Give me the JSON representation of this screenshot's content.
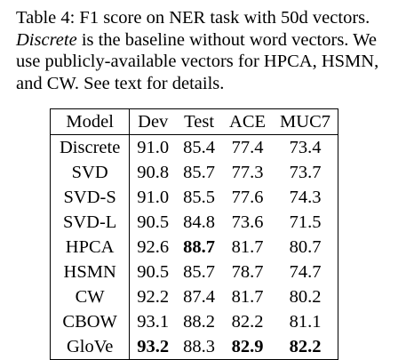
{
  "caption": {
    "line1": "Table 4: F1 score on NER task with 50d vectors.",
    "line2_italic": "Discrete",
    "line2_rest": " is the baseline without word vectors. We",
    "line3": "use publicly-available vectors for HPCA, HSMN,",
    "line4": "and CW. See text for details."
  },
  "table": {
    "headers": [
      "Model",
      "Dev",
      "Test",
      "ACE",
      "MUC7"
    ],
    "rows": [
      {
        "model": "Discrete",
        "values": [
          "91.0",
          "85.4",
          "77.4",
          "73.4"
        ],
        "bold": [
          false,
          false,
          false,
          false
        ]
      },
      {
        "model": "SVD",
        "values": [
          "90.8",
          "85.7",
          "77.3",
          "73.7"
        ],
        "bold": [
          false,
          false,
          false,
          false
        ]
      },
      {
        "model": "SVD-S",
        "values": [
          "91.0",
          "85.5",
          "77.6",
          "74.3"
        ],
        "bold": [
          false,
          false,
          false,
          false
        ]
      },
      {
        "model": "SVD-L",
        "values": [
          "90.5",
          "84.8",
          "73.6",
          "71.5"
        ],
        "bold": [
          false,
          false,
          false,
          false
        ]
      },
      {
        "model": "HPCA",
        "values": [
          "92.6",
          "88.7",
          "81.7",
          "80.7"
        ],
        "bold": [
          false,
          true,
          false,
          false
        ]
      },
      {
        "model": "HSMN",
        "values": [
          "90.5",
          "85.7",
          "78.7",
          "74.7"
        ],
        "bold": [
          false,
          false,
          false,
          false
        ]
      },
      {
        "model": "CW",
        "values": [
          "92.2",
          "87.4",
          "81.7",
          "80.2"
        ],
        "bold": [
          false,
          false,
          false,
          false
        ]
      },
      {
        "model": "CBOW",
        "values": [
          "93.1",
          "88.2",
          "82.2",
          "81.1"
        ],
        "bold": [
          false,
          false,
          false,
          false
        ]
      },
      {
        "model": "GloVe",
        "values": [
          "93.2",
          "88.3",
          "82.9",
          "82.2"
        ],
        "bold": [
          true,
          false,
          true,
          true
        ]
      }
    ]
  }
}
